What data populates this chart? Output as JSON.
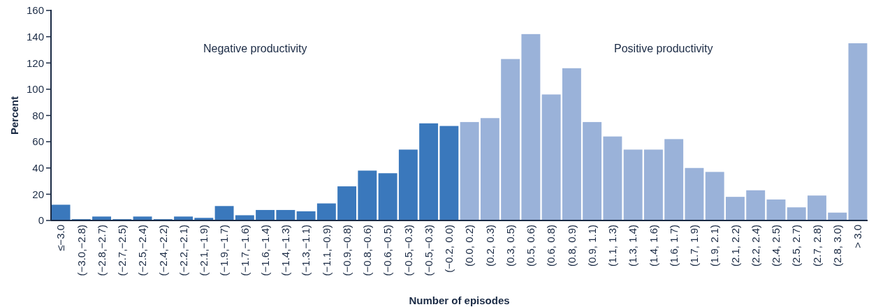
{
  "chart_data": {
    "type": "bar",
    "xlabel": "Number of episodes",
    "ylabel": "Percent",
    "categories": [
      "≤−3.0",
      "(−3.0,−2.8)",
      "(−2.8,−2.7)",
      "(−2.7,−2.5)",
      "(−2.5,−2.4)",
      "(−2.4,−2.2)",
      "(−2.2,−2.1)",
      "(−2.1,−1.9)",
      "(−1.9,−1.7)",
      "(−1.7,−1.6)",
      "(−1.6,−1.4)",
      "(−1.4,−1.3)",
      "(−1.3,−1.1)",
      "(−1.1,−0.9)",
      "(−0.9,−0.8)",
      "(−0.8,−0.6)",
      "(−0.6,−0.5)",
      "(−0.5,−0.3)",
      "(−0.5,−0.3)",
      "(−0.2, 0.0)",
      "(0.0, 0.2)",
      "(0.2, 0.3)",
      "(0.3, 0.5)",
      "(0.5, 0.6)",
      "(0.6, 0.8)",
      "(0.8, 0.9)",
      "(0.9, 1.1)",
      "(1.1, 1.3)",
      "(1.3, 1.4)",
      "(1.4, 1.6)",
      "(1.6, 1.7)",
      "(1.7, 1.9)",
      "(1.9, 2.1)",
      "(2.1, 2.2)",
      "(2.2, 2.4)",
      "(2.4, 2.5)",
      "(2.5, 2.7)",
      "(2.7, 2.8)",
      "(2.8, 3.0)",
      "> 3.0"
    ],
    "values": [
      12,
      1,
      3,
      1,
      3,
      1,
      3,
      2,
      11,
      4,
      8,
      8,
      7,
      13,
      26,
      38,
      36,
      54,
      74,
      72,
      75,
      78,
      123,
      142,
      96,
      116,
      75,
      64,
      54,
      54,
      62,
      40,
      37,
      18,
      23,
      16,
      10,
      19,
      6,
      135
    ],
    "colors": [
      "#3a78bc",
      "#3a78bc",
      "#3a78bc",
      "#3a78bc",
      "#3a78bc",
      "#3a78bc",
      "#3a78bc",
      "#3a78bc",
      "#3a78bc",
      "#3a78bc",
      "#3a78bc",
      "#3a78bc",
      "#3a78bc",
      "#3a78bc",
      "#3a78bc",
      "#3a78bc",
      "#3a78bc",
      "#3a78bc",
      "#3a78bc",
      "#3a78bc",
      "#9ab2d9",
      "#9ab2d9",
      "#9ab2d9",
      "#9ab2d9",
      "#9ab2d9",
      "#9ab2d9",
      "#9ab2d9",
      "#9ab2d9",
      "#9ab2d9",
      "#9ab2d9",
      "#9ab2d9",
      "#9ab2d9",
      "#9ab2d9",
      "#9ab2d9",
      "#9ab2d9",
      "#9ab2d9",
      "#9ab2d9",
      "#9ab2d9",
      "#9ab2d9",
      "#9ab2d9"
    ],
    "ylim": [
      0,
      160
    ],
    "yticks": [
      0,
      20,
      40,
      60,
      80,
      100,
      120,
      140,
      160
    ],
    "grid": false,
    "annotations": [
      "Negative productivity",
      "Positive productivity"
    ]
  }
}
